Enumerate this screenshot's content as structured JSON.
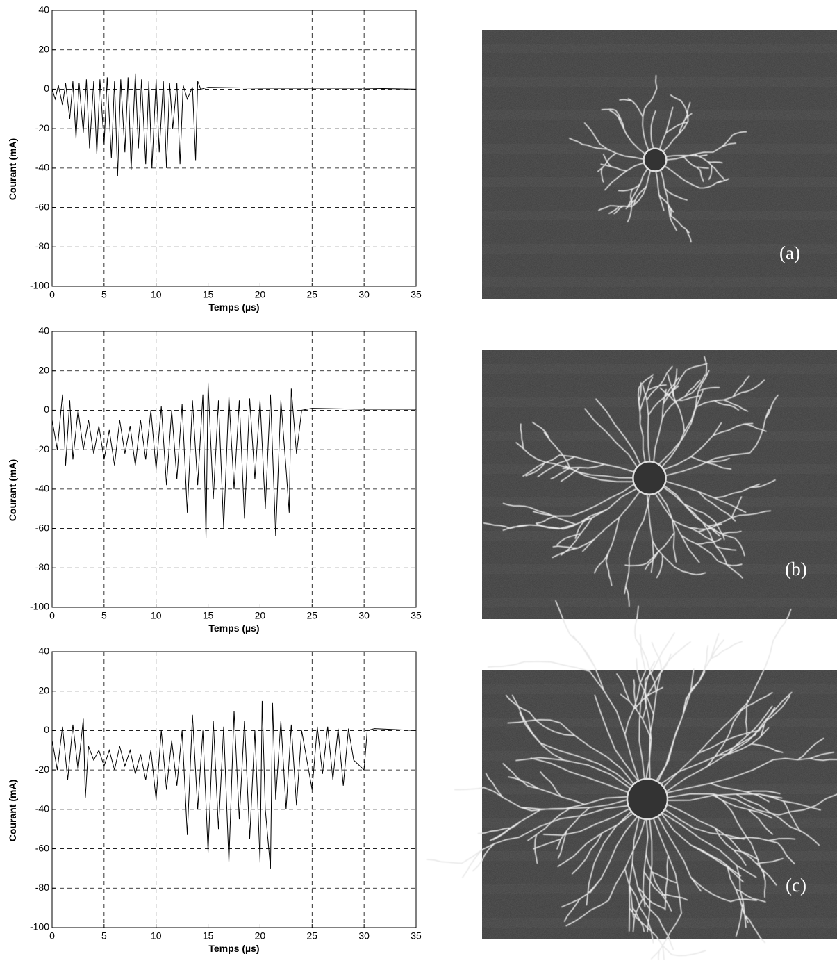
{
  "chart_data": [
    {
      "type": "line",
      "xlabel": "Temps (µs)",
      "ylabel": "Courant (mA)",
      "xlim": [
        0,
        35
      ],
      "ylim": [
        -100,
        40
      ],
      "xticks": [
        0,
        5,
        10,
        15,
        20,
        25,
        30,
        35
      ],
      "yticks": [
        -100,
        -80,
        -60,
        -40,
        -20,
        0,
        20,
        40
      ],
      "grid": true,
      "color": "#000000",
      "x": [
        0,
        0.3,
        0.6,
        1,
        1.3,
        1.7,
        2,
        2.3,
        2.6,
        3,
        3.3,
        3.6,
        4,
        4.3,
        4.6,
        5,
        5.3,
        5.7,
        6,
        6.3,
        6.6,
        7,
        7.3,
        7.6,
        8,
        8.3,
        8.6,
        9,
        9.3,
        9.6,
        10,
        10.3,
        10.7,
        11,
        11.3,
        11.6,
        12,
        12.3,
        12.6,
        13,
        13.5,
        13.8,
        14,
        14.3,
        15,
        20,
        25,
        30,
        35
      ],
      "values": [
        0,
        -5,
        2,
        -8,
        3,
        -15,
        4,
        -25,
        3,
        -22,
        5,
        -30,
        4,
        -33,
        5,
        -28,
        6,
        -35,
        4,
        -44,
        5,
        -32,
        6,
        -41,
        8,
        -30,
        5,
        -38,
        4,
        -40,
        5,
        -32,
        4,
        -40,
        3,
        -20,
        3,
        -38,
        2,
        -5,
        1,
        -36,
        4,
        0,
        1,
        0.5,
        0.5,
        0.5,
        0
      ]
    },
    {
      "type": "line",
      "xlabel": "Temps (µs)",
      "ylabel": "Courant (mA)",
      "xlim": [
        0,
        35
      ],
      "ylim": [
        -100,
        40
      ],
      "xticks": [
        0,
        5,
        10,
        15,
        20,
        25,
        30,
        35
      ],
      "yticks": [
        -100,
        -80,
        -60,
        -40,
        -20,
        0,
        20,
        40
      ],
      "grid": true,
      "color": "#000000",
      "x": [
        0,
        0.5,
        1,
        1.3,
        1.7,
        2,
        2.5,
        3,
        3.5,
        4,
        4.5,
        5,
        5.5,
        6,
        6.5,
        7,
        7.5,
        8,
        8.5,
        9,
        9.5,
        10,
        10.5,
        11,
        11.5,
        12,
        12.5,
        13,
        13.5,
        14,
        14.5,
        14.8,
        15,
        15.5,
        16,
        16.5,
        17,
        17.5,
        18,
        18.5,
        19,
        19.5,
        20,
        20.5,
        21,
        21.5,
        22,
        22.5,
        22.8,
        23,
        23.5,
        24,
        25,
        30,
        35
      ],
      "values": [
        -5,
        -20,
        8,
        -28,
        5,
        -25,
        0,
        -20,
        -5,
        -22,
        -8,
        -25,
        -10,
        -28,
        -5,
        -22,
        -8,
        -28,
        -5,
        -25,
        0,
        -30,
        2,
        -38,
        0,
        -35,
        3,
        -52,
        5,
        -38,
        8,
        -65,
        14,
        -45,
        5,
        -60,
        7,
        -40,
        5,
        -55,
        6,
        -35,
        5,
        -50,
        8,
        -64,
        5,
        -30,
        -52,
        11,
        -22,
        0,
        1,
        0.5,
        0.5
      ]
    },
    {
      "type": "line",
      "xlabel": "Temps (µs)",
      "ylabel": "Courant (mA)",
      "xlim": [
        0,
        35
      ],
      "ylim": [
        -100,
        40
      ],
      "xticks": [
        0,
        5,
        10,
        15,
        20,
        25,
        30,
        35
      ],
      "yticks": [
        -100,
        -80,
        -60,
        -40,
        -20,
        0,
        20,
        40
      ],
      "grid": true,
      "color": "#000000",
      "x": [
        0,
        0.5,
        1,
        1.5,
        2,
        2.5,
        3,
        3.2,
        3.5,
        4,
        4.5,
        5,
        5.5,
        6,
        6.5,
        7,
        7.5,
        8,
        8.5,
        9,
        9.5,
        10,
        10.5,
        11,
        11.5,
        12,
        12.5,
        13,
        13.5,
        14,
        14.5,
        15,
        15.5,
        16,
        16.5,
        17,
        17.5,
        18,
        18.5,
        19,
        19.5,
        20,
        20.2,
        20.5,
        21,
        21.2,
        21.5,
        22,
        22.5,
        23,
        23.5,
        24,
        25,
        25.5,
        26,
        26.5,
        27,
        27.5,
        28,
        28.5,
        29,
        30,
        30.3,
        31,
        35
      ],
      "values": [
        -5,
        -20,
        2,
        -25,
        3,
        -20,
        6,
        -34,
        -8,
        -15,
        -10,
        -18,
        -10,
        -20,
        -8,
        -18,
        -10,
        -22,
        -12,
        -25,
        -10,
        -35,
        0,
        -30,
        -5,
        -28,
        0,
        -53,
        8,
        -40,
        0,
        -62,
        5,
        -50,
        2,
        -67,
        10,
        -45,
        5,
        -55,
        0,
        -67,
        15,
        -40,
        -70,
        14,
        -35,
        5,
        -40,
        3,
        -38,
        0,
        -30,
        2,
        -22,
        2,
        -25,
        1,
        -28,
        1,
        -15,
        -20,
        0,
        1,
        0
      ]
    }
  ],
  "photos": [
    {
      "label": "(a)"
    },
    {
      "label": "(b)"
    },
    {
      "label": "(c)"
    }
  ]
}
